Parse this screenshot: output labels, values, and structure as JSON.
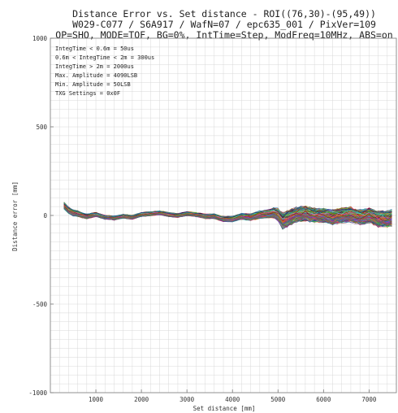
{
  "chart_data": {
    "type": "line",
    "title_lines": [
      "Distance Error vs. Set distance - ROI((76,30)-(95,49))",
      "W029-C077 / S6A917 / WafN=07 / epc635_001 / PixVer=109",
      "OP=SHO, MODE=TOF, BG=0%, IntTime=Step, ModFreq=10MHz, ABS=on"
    ],
    "xlabel": "Set distance [mm]",
    "ylabel": "Distance error [mm]",
    "xlim": [
      0,
      7600
    ],
    "ylim": [
      -1000,
      1000
    ],
    "x_ticks": [
      {
        "value": 1000,
        "label": "1000"
      },
      {
        "value": 2000,
        "label": "2000"
      },
      {
        "value": 3000,
        "label": "3000"
      },
      {
        "value": 4000,
        "label": "4000"
      },
      {
        "value": 5000,
        "label": "5000"
      },
      {
        "value": 6000,
        "label": "6000"
      },
      {
        "value": 7000,
        "label": "7000"
      }
    ],
    "y_ticks": [
      {
        "value": 1000,
        "label": "1000"
      },
      {
        "value": 500,
        "label": "500"
      },
      {
        "value": 0,
        "label": "0"
      },
      {
        "value": -500,
        "label": "-500"
      },
      {
        "value": -1000,
        "label": "-1000"
      }
    ],
    "grid": true,
    "annotation_lines": [
      "IntegTime < 0.6m = 50us",
      "0.6m < IntegTime < 2m = 300us",
      "IntegTime > 2m = 2000us",
      "Max. Amplitude = 4090LSB",
      "Min. Amplitude = 50LSB",
      "TXG Settings = 0x0F"
    ],
    "series_count": 400,
    "series_center": {
      "x": [
        300,
        400,
        500,
        600,
        700,
        800,
        900,
        1000,
        1200,
        1400,
        1600,
        1800,
        2000,
        2200,
        2400,
        2600,
        2800,
        3000,
        3200,
        3400,
        3600,
        3800,
        4000,
        4200,
        4400,
        4600,
        4800,
        4900,
        5000,
        5100,
        5200,
        5400,
        5600,
        5800,
        6000,
        6200,
        6400,
        6600,
        6800,
        7000,
        7200,
        7400,
        7500
      ],
      "y": [
        55,
        30,
        15,
        10,
        0,
        -5,
        0,
        5,
        -10,
        -15,
        -5,
        -10,
        5,
        10,
        15,
        5,
        0,
        10,
        5,
        -5,
        -5,
        -20,
        -20,
        -5,
        -10,
        5,
        10,
        15,
        5,
        -30,
        -20,
        5,
        10,
        0,
        0,
        -10,
        0,
        5,
        -10,
        0,
        -20,
        -20,
        -15
      ]
    },
    "series_spread": {
      "x": [
        300,
        1000,
        2000,
        3000,
        4000,
        4800,
        5000,
        5100,
        5400,
        6000,
        6400,
        7000,
        7500
      ],
      "y": [
        25,
        15,
        15,
        15,
        20,
        30,
        45,
        60,
        55,
        50,
        55,
        55,
        60
      ]
    },
    "colors": [
      "#e6194b",
      "#3cb44b",
      "#4363d8",
      "#f58231",
      "#911eb4",
      "#46f0f0",
      "#f032e6",
      "#808000",
      "#008080",
      "#9a6324",
      "#800000",
      "#000075",
      "#aa6e28",
      "#6a3d9a",
      "#1f78b4",
      "#33a02c",
      "#b15928",
      "#ff7f00",
      "#666666",
      "#17becf",
      "#bcbd22",
      "#d62728",
      "#2ca02c",
      "#9467bd"
    ]
  }
}
